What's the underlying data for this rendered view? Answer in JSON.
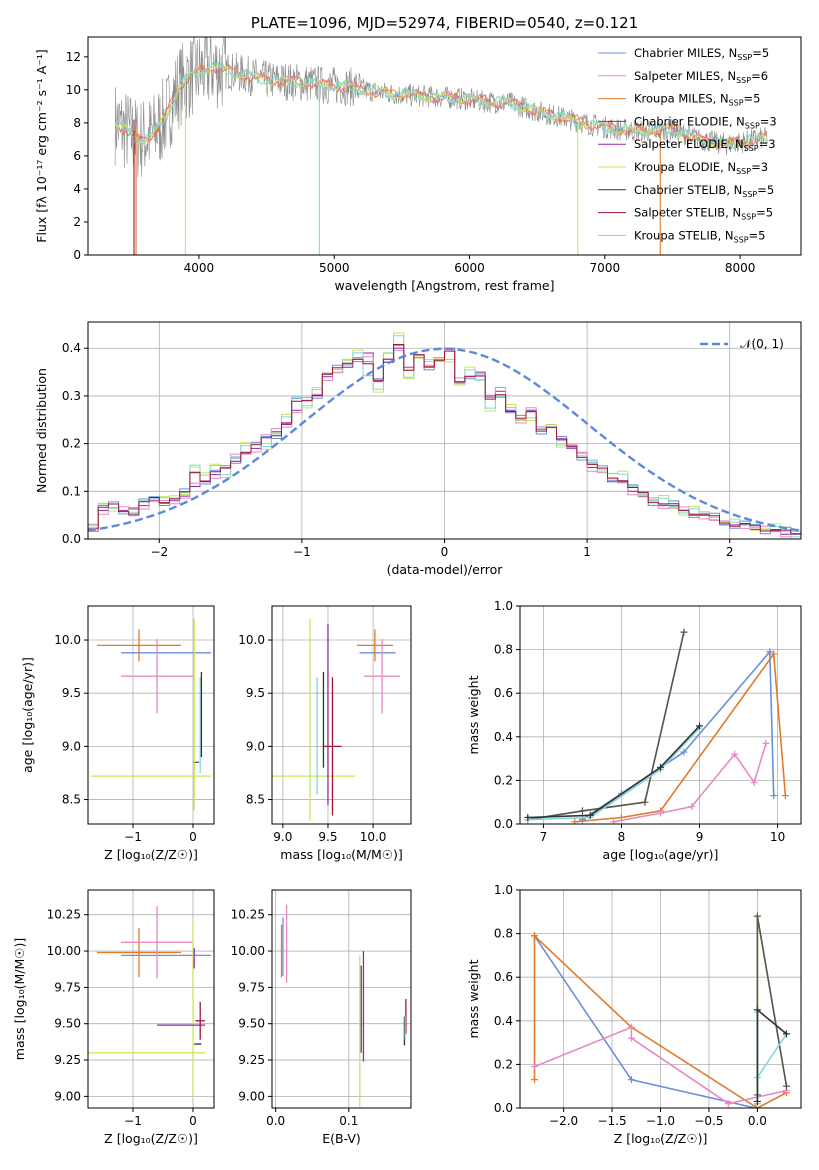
{
  "colors": {
    "chabrier_miles": "#6a8fdc",
    "salpeter_miles": "#e58ac2",
    "kroupa_miles": "#e07b2a",
    "chabrier_elodie": "#555555",
    "salpeter_elodie": "#8e2aa8",
    "kroupa_elodie": "#c9e65a",
    "chabrier_stelib": "#333333",
    "salpeter_stelib": "#a0162e",
    "kroupa_stelib": "#7fd8dc",
    "data_gray": "#8a8a8a",
    "normal_curve": "#5b8ad8",
    "grid": "#b0b0b0"
  },
  "chart_data": [
    {
      "id": "spectrum",
      "type": "line",
      "title": "PLATE=1096, MJD=52974, FIBERID=0540, z=0.121",
      "xlabel": "wavelength [Angstrom, rest frame]",
      "ylabel": "Flux [fλ 10⁻¹⁷ erg cm⁻² s⁻¹ A⁻¹]",
      "xlim": [
        3180,
        8450
      ],
      "ylim": [
        0,
        13.2
      ],
      "xticks": [
        "4000",
        "5000",
        "6000",
        "7000",
        "8000"
      ],
      "yticks": [
        "0",
        "2",
        "4",
        "6",
        "8",
        "10",
        "12"
      ],
      "grid": false,
      "legend_position": "top-right",
      "legend": [
        {
          "label": "Chabrier MILES, N",
          "sub": "SSP",
          "suffix": "=5"
        },
        {
          "label": "Salpeter MILES, N",
          "sub": "SSP",
          "suffix": "=6"
        },
        {
          "label": "Kroupa MILES, N",
          "sub": "SSP",
          "suffix": "=5"
        },
        {
          "label": "Chabrier ELODIE, N",
          "sub": "SSP",
          "suffix": "=3"
        },
        {
          "label": "Salpeter ELODIE, N",
          "sub": "SSP",
          "suffix": "=3"
        },
        {
          "label": "Kroupa ELODIE, N",
          "sub": "SSP",
          "suffix": "=3"
        },
        {
          "label": "Chabrier STELIB, N",
          "sub": "SSP",
          "suffix": "=5"
        },
        {
          "label": "Salpeter STELIB, N",
          "sub": "SSP",
          "suffix": "=5"
        },
        {
          "label": "Kroupa STELIB, N",
          "sub": "SSP",
          "suffix": "=5"
        }
      ],
      "continuum": [
        [
          3380,
          8.0
        ],
        [
          3450,
          7.6
        ],
        [
          3550,
          7.0
        ],
        [
          3650,
          7.2
        ],
        [
          3750,
          8.3
        ],
        [
          3850,
          10.2
        ],
        [
          3950,
          10.9
        ],
        [
          4100,
          11.4
        ],
        [
          4300,
          11.0
        ],
        [
          4500,
          10.6
        ],
        [
          4700,
          10.5
        ],
        [
          4900,
          10.3
        ],
        [
          5100,
          10.2
        ],
        [
          5300,
          9.9
        ],
        [
          5500,
          9.7
        ],
        [
          5700,
          9.6
        ],
        [
          5900,
          9.5
        ],
        [
          6100,
          9.3
        ],
        [
          6300,
          9.2
        ],
        [
          6500,
          8.7
        ],
        [
          6700,
          8.3
        ],
        [
          6900,
          7.9
        ],
        [
          7100,
          7.6
        ],
        [
          7300,
          7.5
        ],
        [
          7500,
          7.6
        ],
        [
          7700,
          7.0
        ],
        [
          7900,
          6.7
        ],
        [
          8200,
          7.1
        ]
      ],
      "spikes": [
        {
          "series": "salpeter_stelib",
          "x": 3520,
          "y0": 0,
          "y1": 8.2
        },
        {
          "series": "kroupa_miles",
          "x": 3535,
          "y0": 0,
          "y1": 7.8
        },
        {
          "series": "kroupa_elodie",
          "x": 3900,
          "y0": 0,
          "y1": 11.0
        },
        {
          "series": "kroupa_stelib",
          "x": 4890,
          "y0": 0,
          "y1": 10.3
        },
        {
          "series": "kroupa_elodie",
          "x": 6800,
          "y0": 0,
          "y1": 7.9
        },
        {
          "series": "kroupa_miles",
          "x": 7410,
          "y0": 0,
          "y1": 7.5
        }
      ]
    },
    {
      "id": "residuals",
      "type": "line",
      "xlabel": "(data-model)/error",
      "ylabel": "Normed distribution",
      "xlim": [
        -2.5,
        2.5
      ],
      "ylim": [
        0,
        0.455
      ],
      "xticks": [
        "−2",
        "−1",
        "0",
        "1",
        "2"
      ],
      "yticks": [
        "0.0",
        "0.1",
        "0.2",
        "0.3",
        "0.4"
      ],
      "grid": true,
      "legend_position": "top-right",
      "legend_label": "𝒩(0, 1)",
      "bin_width": 0.1,
      "series_values": [
        [
          0.03,
          0.06,
          0.065,
          0.06,
          0.065,
          0.07,
          0.08,
          0.075,
          0.08,
          0.09,
          0.11,
          0.12,
          0.135,
          0.15,
          0.17,
          0.18,
          0.19,
          0.215,
          0.225,
          0.24,
          0.27,
          0.29,
          0.3,
          0.34,
          0.35,
          0.36,
          0.38,
          0.39,
          0.33,
          0.37,
          0.4,
          0.36,
          0.38,
          0.36,
          0.38,
          0.4,
          0.33,
          0.34,
          0.35,
          0.3,
          0.31,
          0.27,
          0.25,
          0.27,
          0.23,
          0.24,
          0.21,
          0.19,
          0.18,
          0.15,
          0.14,
          0.12,
          0.12,
          0.1,
          0.09,
          0.08,
          0.07,
          0.07,
          0.06,
          0.05,
          0.05,
          0.04,
          0.03,
          0.03,
          0.03,
          0.02,
          0.02,
          0.02,
          0.01,
          0.01
        ],
        [
          0.02,
          0.07,
          0.07,
          0.055,
          0.05,
          0.08,
          0.09,
          0.085,
          0.08,
          0.1,
          0.16,
          0.13,
          0.15,
          0.14,
          0.175,
          0.19,
          0.2,
          0.2,
          0.22,
          0.25,
          0.3,
          0.285,
          0.31,
          0.34,
          0.36,
          0.38,
          0.385,
          0.34,
          0.32,
          0.39,
          0.42,
          0.34,
          0.39,
          0.37,
          0.37,
          0.38,
          0.33,
          0.35,
          0.33,
          0.28,
          0.3,
          0.27,
          0.25,
          0.26,
          0.23,
          0.23,
          0.2,
          0.2,
          0.17,
          0.16,
          0.15,
          0.14,
          0.13,
          0.11,
          0.1,
          0.08,
          0.08,
          0.07,
          0.06,
          0.06,
          0.05,
          0.05,
          0.04,
          0.03,
          0.03,
          0.03,
          0.02,
          0.02,
          0.02,
          0.01
        ],
        [
          0.025,
          0.065,
          0.07,
          0.06,
          0.055,
          0.075,
          0.085,
          0.08,
          0.085,
          0.095,
          0.14,
          0.125,
          0.14,
          0.145,
          0.165,
          0.185,
          0.195,
          0.21,
          0.22,
          0.245,
          0.285,
          0.29,
          0.305,
          0.345,
          0.355,
          0.37,
          0.38,
          0.365,
          0.33,
          0.38,
          0.41,
          0.35,
          0.385,
          0.365,
          0.375,
          0.39,
          0.33,
          0.345,
          0.34,
          0.29,
          0.305,
          0.27,
          0.25,
          0.265,
          0.23,
          0.235,
          0.205,
          0.195,
          0.175,
          0.155,
          0.145,
          0.13,
          0.125,
          0.105,
          0.095,
          0.08,
          0.075,
          0.07,
          0.06,
          0.055,
          0.05,
          0.045,
          0.035,
          0.03,
          0.03,
          0.025,
          0.02,
          0.02,
          0.015,
          0.01
        ]
      ],
      "normal_curve": {
        "mean": 0,
        "sigma": 1
      }
    },
    {
      "id": "age_vs_z",
      "type": "errorbar",
      "xlabel": "Z [log₁₀(Z/Z☉)]",
      "ylabel": "age  [log₁₀(age/yr)]",
      "xlim": [
        -1.75,
        0.35
      ],
      "ylim": [
        8.27,
        10.32
      ],
      "xticks": [
        "−1",
        "0"
      ],
      "yticks": [
        "8.5",
        "9.0",
        "9.5",
        "10.0"
      ],
      "grid": true,
      "points": [
        {
          "series": "chabrier_miles",
          "x": -0.45,
          "xe": 0.75,
          "y": 9.88,
          "ye": 0.0
        },
        {
          "series": "kroupa_miles",
          "x": -0.9,
          "xe": 0.7,
          "y": 9.95,
          "ye": 0.15
        },
        {
          "series": "salpeter_miles",
          "x": -0.6,
          "xe": 0.6,
          "y": 9.66,
          "ye": 0.35
        },
        {
          "series": "kroupa_elodie",
          "x": -0.7,
          "xe": 1.0,
          "y": 8.72,
          "ye": 0.0
        },
        {
          "series": "chabrier_elodie",
          "x": 0.05,
          "xe": 0.05,
          "y": 8.85,
          "ye": 0.0
        },
        {
          "series": "kroupa_elodie",
          "x": 0.02,
          "xe": 0.0,
          "y": 9.3,
          "ye": 0.9
        },
        {
          "series": "kroupa_stelib",
          "x": 0.12,
          "xe": 0.0,
          "y": 9.2,
          "ye": 0.45
        },
        {
          "series": "chabrier_stelib",
          "x": 0.14,
          "xe": 0.0,
          "y": 9.3,
          "ye": 0.4
        }
      ]
    },
    {
      "id": "age_vs_mass",
      "type": "errorbar",
      "xlabel": "mass [log₁₀(M/M☉)]",
      "ylabel": "",
      "xlim": [
        8.88,
        10.42
      ],
      "ylim": [
        8.27,
        10.32
      ],
      "xticks": [
        "9.0",
        "9.5",
        "10.0"
      ],
      "yticks": [
        "8.5",
        "9.0",
        "9.5",
        "10.0"
      ],
      "grid": true,
      "points": [
        {
          "series": "chabrier_miles",
          "x": 10.05,
          "xe": 0.2,
          "y": 9.88,
          "ye": 0.0
        },
        {
          "series": "kroupa_miles",
          "x": 10.02,
          "xe": 0.2,
          "y": 9.95,
          "ye": 0.15
        },
        {
          "series": "salpeter_miles",
          "x": 10.1,
          "xe": 0.2,
          "y": 9.66,
          "ye": 0.35
        },
        {
          "series": "kroupa_elodie",
          "x": 9.3,
          "xe": 0.0,
          "y": 9.25,
          "ye": 0.95
        },
        {
          "series": "kroupa_elodie",
          "x": 9.3,
          "xe": 0.5,
          "y": 8.72,
          "ye": 0.0
        },
        {
          "series": "salpeter_elodie",
          "x": 9.5,
          "xe": 0.0,
          "y": 9.3,
          "ye": 0.85
        },
        {
          "series": "salpeter_stelib",
          "x": 9.55,
          "xe": 0.1,
          "y": 9.0,
          "ye": 0.65
        },
        {
          "series": "chabrier_stelib",
          "x": 9.45,
          "xe": 0.0,
          "y": 9.25,
          "ye": 0.45
        },
        {
          "series": "kroupa_stelib",
          "x": 9.38,
          "xe": 0.0,
          "y": 9.1,
          "ye": 0.55
        }
      ]
    },
    {
      "id": "weight_vs_age",
      "type": "line",
      "xlabel": "age  [log₁₀(age/yr)]",
      "ylabel": "mass weight",
      "xlim": [
        6.7,
        10.3
      ],
      "ylim": [
        0,
        1.0
      ],
      "xticks": [
        "7",
        "8",
        "9",
        "10"
      ],
      "yticks": [
        "0.0",
        "0.2",
        "0.4",
        "0.6",
        "0.8",
        "1.0"
      ],
      "grid": true,
      "series": [
        {
          "id": "chabrier_miles",
          "x": [
            7.5,
            8.0,
            8.8,
            9.9,
            9.95
          ],
          "y": [
            0.02,
            0.14,
            0.33,
            0.79,
            0.13
          ]
        },
        {
          "id": "kroupa_miles",
          "x": [
            7.4,
            8.0,
            8.5,
            9.95,
            10.1
          ],
          "y": [
            0.01,
            0.03,
            0.06,
            0.78,
            0.13
          ]
        },
        {
          "id": "salpeter_miles",
          "x": [
            7.9,
            8.5,
            8.9,
            9.45,
            9.7,
            9.85
          ],
          "y": [
            0.01,
            0.05,
            0.08,
            0.32,
            0.19,
            0.37
          ]
        },
        {
          "id": "kroupa_elodie",
          "x": [
            6.8,
            7.5,
            8.3,
            8.8
          ],
          "y": [
            0.02,
            0.06,
            0.1,
            0.88
          ]
        },
        {
          "id": "chabrier_elodie",
          "x": [
            6.8,
            7.5,
            8.3,
            8.8
          ],
          "y": [
            0.02,
            0.06,
            0.1,
            0.88
          ]
        },
        {
          "id": "kroupa_stelib",
          "x": [
            6.8,
            7.6,
            8.5,
            9.0
          ],
          "y": [
            0.02,
            0.03,
            0.25,
            0.44
          ]
        },
        {
          "id": "chabrier_stelib",
          "x": [
            6.8,
            7.6,
            8.5,
            9.0
          ],
          "y": [
            0.03,
            0.04,
            0.26,
            0.45
          ]
        }
      ]
    },
    {
      "id": "mass_vs_z",
      "type": "errorbar",
      "xlabel": "Z [log₁₀(Z/Z☉)]",
      "ylabel": "mass [log₁₀(M/M☉)]",
      "xlim": [
        -1.75,
        0.35
      ],
      "ylim": [
        8.92,
        10.42
      ],
      "xticks": [
        "−1",
        "0"
      ],
      "yticks": [
        "9.00",
        "9.25",
        "9.50",
        "9.75",
        "10.00",
        "10.25"
      ],
      "grid": true,
      "points": [
        {
          "series": "chabrier_miles",
          "x": -0.45,
          "xe": 0.75,
          "y": 9.97,
          "ye": 0.0
        },
        {
          "series": "kroupa_miles",
          "x": -0.9,
          "xe": 0.7,
          "y": 9.99,
          "ye": 0.17
        },
        {
          "series": "salpeter_miles",
          "x": -0.6,
          "xe": 0.6,
          "y": 10.06,
          "ye": 0.25
        },
        {
          "series": "kroupa_elodie",
          "x": -0.8,
          "xe": 1.0,
          "y": 9.3,
          "ye": 0.0
        },
        {
          "series": "kroupa_elodie",
          "x": 0.0,
          "xe": 0.0,
          "y": 9.6,
          "ye": 0.6
        },
        {
          "series": "salpeter_elodie",
          "x": -0.2,
          "xe": 0.4,
          "y": 9.49,
          "ye": 0.0
        },
        {
          "series": "salpeter_elodie",
          "x": 0.02,
          "xe": 0.0,
          "y": 9.95,
          "ye": 0.07
        },
        {
          "series": "salpeter_stelib",
          "x": 0.12,
          "xe": 0.08,
          "y": 9.52,
          "ye": 0.13
        },
        {
          "series": "chabrier_stelib",
          "x": 0.08,
          "xe": 0.06,
          "y": 9.36,
          "ye": 0.0
        }
      ]
    },
    {
      "id": "mass_vs_ebv",
      "type": "errorbar",
      "xlabel": "E(B-V)",
      "ylabel": "",
      "xlim": [
        -0.005,
        0.185
      ],
      "ylim": [
        8.92,
        10.42
      ],
      "xticks": [
        "0.0",
        "0.1"
      ],
      "yticks": [
        "9.00",
        "9.25",
        "9.50",
        "9.75",
        "10.00",
        "10.25"
      ],
      "grid": true,
      "points": [
        {
          "series": "chabrier_miles",
          "x": 0.01,
          "xe": 0.0,
          "y": 10.03,
          "ye": 0.2
        },
        {
          "series": "kroupa_miles",
          "x": 0.008,
          "xe": 0.0,
          "y": 10.0,
          "ye": 0.18
        },
        {
          "series": "salpeter_miles",
          "x": 0.015,
          "xe": 0.0,
          "y": 10.05,
          "ye": 0.27
        },
        {
          "series": "kroupa_elodie",
          "x": 0.115,
          "xe": 0.0,
          "y": 9.45,
          "ye": 0.52
        },
        {
          "series": "salpeter_elodie",
          "x": 0.12,
          "xe": 0.0,
          "y": 9.62,
          "ye": 0.38
        },
        {
          "series": "chabrier_elodie",
          "x": 0.117,
          "xe": 0.0,
          "y": 9.6,
          "ye": 0.3
        },
        {
          "series": "salpeter_stelib",
          "x": 0.178,
          "xe": 0.0,
          "y": 9.55,
          "ye": 0.12
        },
        {
          "series": "chabrier_stelib",
          "x": 0.176,
          "xe": 0.0,
          "y": 9.45,
          "ye": 0.1
        },
        {
          "series": "kroupa_stelib",
          "x": 0.177,
          "xe": 0.0,
          "y": 9.47,
          "ye": 0.08
        }
      ]
    },
    {
      "id": "weight_vs_z",
      "type": "line",
      "xlabel": "Z [log₁₀(Z/Z☉)]",
      "ylabel": "mass weight",
      "xlim": [
        -2.45,
        0.45
      ],
      "ylim": [
        0,
        1.0
      ],
      "xticks": [
        "−2.0",
        "−1.5",
        "−1.0",
        "−0.5",
        "0.0"
      ],
      "yticks": [
        "0.0",
        "0.2",
        "0.4",
        "0.6",
        "0.8",
        "1.0"
      ],
      "grid": true,
      "series": [
        {
          "id": "chabrier_miles",
          "x": [
            -2.3,
            -1.3,
            -0.02,
            -0.02
          ],
          "y": [
            0.79,
            0.13,
            0.0,
            0.0
          ]
        },
        {
          "id": "kroupa_miles",
          "x": [
            -2.3,
            -2.3,
            -1.3,
            0.0,
            0.3
          ],
          "y": [
            0.13,
            0.79,
            0.37,
            0.0,
            0.07
          ]
        },
        {
          "id": "salpeter_miles",
          "x": [
            -2.3,
            -1.3,
            -1.3,
            -0.3,
            0.3
          ],
          "y": [
            0.19,
            0.37,
            0.32,
            0.02,
            0.08
          ]
        },
        {
          "id": "kroupa_elodie",
          "x": [
            0.0,
            0.0,
            0.3
          ],
          "y": [
            0.02,
            0.88,
            0.1
          ]
        },
        {
          "id": "chabrier_elodie",
          "x": [
            0.0,
            0.0,
            0.3
          ],
          "y": [
            0.06,
            0.88,
            0.1
          ]
        },
        {
          "id": "kroupa_stelib",
          "x": [
            0.0,
            0.0,
            0.0,
            0.3
          ],
          "y": [
            0.02,
            0.44,
            0.14,
            0.34
          ]
        },
        {
          "id": "chabrier_stelib",
          "x": [
            0.0,
            0.0,
            0.3
          ],
          "y": [
            0.03,
            0.45,
            0.34
          ]
        }
      ]
    }
  ]
}
